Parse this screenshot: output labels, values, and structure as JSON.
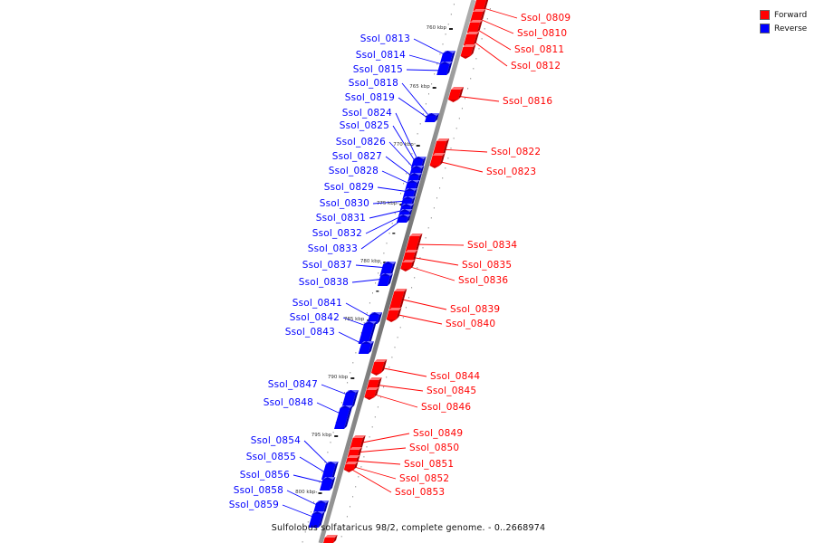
{
  "legend": {
    "forward_label": "Forward",
    "reverse_label": "Reverse",
    "forward_color": "#ff0000",
    "reverse_color": "#0000ff"
  },
  "caption": "Sulfolobus solfataricus 98/2, complete genome. - 0..2668974",
  "ticks": [
    "760 kbp",
    "765 kbp",
    "770 kbp",
    "775 kbp",
    "780 kbp",
    "785 kbp",
    "790 kbp",
    "795 kbp",
    "800 kbp"
  ],
  "forward_genes": [
    "Ssol_0809",
    "Ssol_0810",
    "Ssol_0811",
    "Ssol_0812",
    "Ssol_0816",
    "Ssol_0822",
    "Ssol_0823",
    "Ssol_0834",
    "Ssol_0835",
    "Ssol_0836",
    "Ssol_0839",
    "Ssol_0840",
    "Ssol_0844",
    "Ssol_0845",
    "Ssol_0846",
    "Ssol_0849",
    "Ssol_0850",
    "Ssol_0851",
    "Ssol_0852",
    "Ssol_0853"
  ],
  "reverse_genes": [
    "Ssol_0813",
    "Ssol_0814",
    "Ssol_0815",
    "Ssol_0818",
    "Ssol_0819",
    "Ssol_0824",
    "Ssol_0825",
    "Ssol_0826",
    "Ssol_0827",
    "Ssol_0828",
    "Ssol_0829",
    "Ssol_0830",
    "Ssol_0831",
    "Ssol_0832",
    "Ssol_0833",
    "Ssol_0837",
    "Ssol_0838",
    "Ssol_0841",
    "Ssol_0842",
    "Ssol_0843",
    "Ssol_0847",
    "Ssol_0848",
    "Ssol_0854",
    "Ssol_0855",
    "Ssol_0856",
    "Ssol_0858",
    "Ssol_0859"
  ]
}
